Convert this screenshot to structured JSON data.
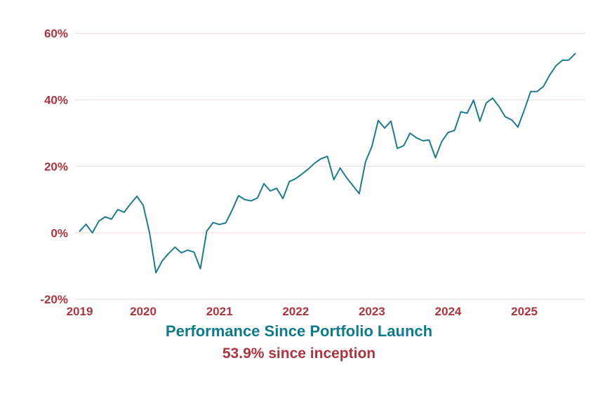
{
  "chart_data": {
    "type": "line",
    "title": "Performance Since Portfolio Launch",
    "subtitle": "53.9% since inception",
    "final_value_pct": 53.9,
    "x_unit": "month",
    "x_start": "2019-03",
    "x_end": "2025-09",
    "n_points": 79,
    "values": [
      0.5,
      2.6,
      0.0,
      3.5,
      4.8,
      4.1,
      7.0,
      6.2,
      8.7,
      11.0,
      8.3,
      0.0,
      -12.0,
      -8.4,
      -6.2,
      -4.3,
      -6.0,
      -5.2,
      -5.8,
      -10.8,
      0.5,
      3.1,
      2.5,
      3.0,
      6.8,
      11.2,
      10.0,
      9.6,
      10.5,
      14.8,
      12.6,
      13.4,
      10.3,
      15.4,
      16.3,
      17.7,
      19.2,
      21.0,
      22.3,
      23.0,
      16.0,
      19.5,
      16.6,
      14.2,
      11.8,
      21.4,
      26.0,
      33.8,
      31.5,
      33.6,
      25.4,
      26.2,
      30.0,
      28.6,
      27.7,
      27.9,
      22.6,
      27.5,
      30.2,
      30.8,
      36.4,
      36.0,
      39.9,
      33.6,
      39.1,
      40.5,
      38.0,
      34.9,
      34.0,
      31.8,
      37.0,
      42.5,
      42.5,
      44.0,
      47.5,
      50.3,
      51.9,
      52.0,
      53.9
    ],
    "yticks": [
      {
        "label": "60%",
        "value": 60
      },
      {
        "label": "40%",
        "value": 40
      },
      {
        "label": "20%",
        "value": 20
      },
      {
        "label": "0%",
        "value": 0
      },
      {
        "label": "-20%",
        "value": -20
      }
    ],
    "xticks": [
      {
        "label": "2019",
        "index": 0
      },
      {
        "label": "2020",
        "index": 10
      },
      {
        "label": "2021",
        "index": 22
      },
      {
        "label": "2022",
        "index": 34
      },
      {
        "label": "2023",
        "index": 46
      },
      {
        "label": "2024",
        "index": 58
      },
      {
        "label": "2025",
        "index": 70
      }
    ],
    "ylim": [
      -20,
      65
    ],
    "grid": "horizontal",
    "legend": "none",
    "line_color": "#1e7b8b",
    "grid_color": "#f2e4e0",
    "tick_color": "#a93541",
    "title_color": "#0e7a8a",
    "subtitle_color": "#a93541",
    "background_color": "#ffffff"
  }
}
